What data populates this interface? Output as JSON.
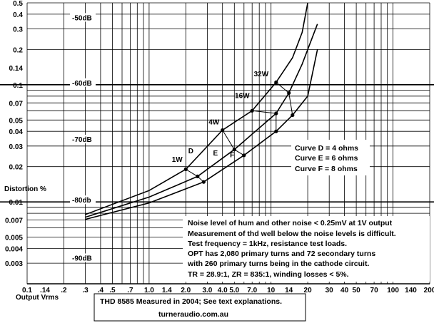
{
  "chart_data": {
    "type": "line",
    "xscale": "log",
    "yscale": "log",
    "xlim": [
      0.1,
      200
    ],
    "ylim": [
      0.002,
      0.5
    ],
    "xlabel": "Output Vrms",
    "ylabel": "Distortion %",
    "x_ticks": [
      {
        "v": 0.1,
        "label": "0.1"
      },
      {
        "v": 0.14,
        "label": ".14"
      },
      {
        "v": 0.2,
        "label": ".2"
      },
      {
        "v": 0.3,
        "label": ".3"
      },
      {
        "v": 0.4,
        "label": ".4"
      },
      {
        "v": 0.5,
        "label": ".5"
      },
      {
        "v": 0.7,
        "label": ".7"
      },
      {
        "v": 1.0,
        "label": "1.0"
      },
      {
        "v": 1.4,
        "label": "1.4"
      },
      {
        "v": 2.0,
        "label": "2.0"
      },
      {
        "v": 3.0,
        "label": "3.0"
      },
      {
        "v": 4.0,
        "label": "4.0"
      },
      {
        "v": 5.0,
        "label": "5.0"
      },
      {
        "v": 7.0,
        "label": "7.0"
      },
      {
        "v": 10,
        "label": "10"
      },
      {
        "v": 14,
        "label": "14"
      },
      {
        "v": 20,
        "label": "20"
      },
      {
        "v": 30,
        "label": "30"
      },
      {
        "v": 40,
        "label": "40"
      },
      {
        "v": 50,
        "label": "50"
      },
      {
        "v": 70,
        "label": "70"
      },
      {
        "v": 100,
        "label": "100"
      },
      {
        "v": 140,
        "label": "140"
      },
      {
        "v": 200,
        "label": "200"
      }
    ],
    "y_ticks": [
      {
        "v": 0.5,
        "label": "0.5"
      },
      {
        "v": 0.4,
        "label": "0.4"
      },
      {
        "v": 0.3,
        "label": "0.3"
      },
      {
        "v": 0.2,
        "label": "0.2"
      },
      {
        "v": 0.14,
        "label": "0.14"
      },
      {
        "v": 0.1,
        "label": "0.1"
      },
      {
        "v": 0.07,
        "label": "0.07"
      },
      {
        "v": 0.05,
        "label": "0.05"
      },
      {
        "v": 0.04,
        "label": "0.04"
      },
      {
        "v": 0.03,
        "label": "0.03"
      },
      {
        "v": 0.02,
        "label": "0.02"
      },
      {
        "v": 0.01,
        "label": "0.01"
      },
      {
        "v": 0.007,
        "label": "0.007"
      },
      {
        "v": 0.005,
        "label": "0.005"
      },
      {
        "v": 0.004,
        "label": "0.004"
      },
      {
        "v": 0.003,
        "label": "0.003"
      }
    ],
    "grid_x_minor": [
      0.1,
      0.2,
      0.3,
      0.4,
      0.5,
      0.6,
      0.7,
      0.8,
      0.9,
      1,
      2,
      3,
      4,
      5,
      6,
      7,
      8,
      9,
      10,
      20,
      30,
      40,
      50,
      60,
      70,
      80,
      90,
      100,
      200
    ],
    "grid_y_minor": [
      0.003,
      0.004,
      0.005,
      0.006,
      0.007,
      0.008,
      0.009,
      0.01,
      0.02,
      0.03,
      0.04,
      0.05,
      0.06,
      0.07,
      0.08,
      0.09,
      0.1,
      0.2,
      0.3,
      0.4,
      0.5
    ],
    "grid_y_major": [
      0.01,
      0.1
    ],
    "db_labels": [
      {
        "text": "-50dB",
        "y": 0.36
      },
      {
        "text": "-60dB",
        "y": 0.1
      },
      {
        "text": "-70dB",
        "y": 0.033
      },
      {
        "text": "-80db",
        "y": 0.01
      },
      {
        "text": "-90dB",
        "y": 0.0032
      }
    ],
    "series": [
      {
        "name": "D",
        "points": [
          [
            0.3,
            0.0078
          ],
          [
            1.0,
            0.0125
          ],
          [
            2.0,
            0.019
          ],
          [
            4.0,
            0.041
          ],
          [
            7.0,
            0.06
          ],
          [
            11.0,
            0.105
          ],
          [
            15.0,
            0.17
          ],
          [
            18.0,
            0.28
          ],
          [
            20.0,
            0.5
          ]
        ]
      },
      {
        "name": "E",
        "points": [
          [
            0.3,
            0.0074
          ],
          [
            1.0,
            0.011
          ],
          [
            2.5,
            0.0165
          ],
          [
            5.0,
            0.028
          ],
          [
            11.0,
            0.057
          ],
          [
            14.0,
            0.085
          ],
          [
            18.0,
            0.15
          ],
          [
            24.0,
            0.33
          ]
        ]
      },
      {
        "name": "F",
        "points": [
          [
            0.3,
            0.0071
          ],
          [
            1.0,
            0.0098
          ],
          [
            2.8,
            0.0148
          ],
          [
            6.0,
            0.025
          ],
          [
            11.0,
            0.04
          ],
          [
            15.0,
            0.055
          ],
          [
            20.0,
            0.08
          ],
          [
            24.0,
            0.2
          ]
        ]
      }
    ],
    "power_lines": [
      {
        "label": "1W",
        "points": [
          [
            2.0,
            0.019
          ],
          [
            2.5,
            0.0165
          ],
          [
            2.8,
            0.0148
          ]
        ]
      },
      {
        "label": "4W",
        "points": [
          [
            4.0,
            0.041
          ],
          [
            5.0,
            0.028
          ],
          [
            6.0,
            0.025
          ]
        ]
      },
      {
        "label": "16W",
        "points": [
          [
            7.0,
            0.06
          ],
          [
            11.0,
            0.057
          ],
          [
            11.0,
            0.04
          ]
        ]
      },
      {
        "label": "32W",
        "points": [
          [
            11.0,
            0.105
          ],
          [
            14.0,
            0.085
          ],
          [
            15.0,
            0.055
          ]
        ]
      }
    ],
    "power_label_positions": [
      {
        "label": "1W",
        "x": 1.7,
        "y": 0.022
      },
      {
        "label": "4W",
        "x": 3.4,
        "y": 0.046
      },
      {
        "label": "16W",
        "x": 5.8,
        "y": 0.077
      },
      {
        "label": "32W",
        "x": 8.3,
        "y": 0.118
      }
    ],
    "curve_label_positions": [
      {
        "label": "D",
        "x": 2.2,
        "y": 0.026
      },
      {
        "label": "E",
        "x": 3.5,
        "y": 0.025
      },
      {
        "label": "F",
        "x": 4.8,
        "y": 0.024
      }
    ]
  },
  "legend": [
    "Curve D = 4 ohms",
    "Curve E = 6 ohms",
    "Curve F = 8 ohms"
  ],
  "notes": [
    "Noise level of hum and other noise < 0.25mV at 1V output",
    "Measurement of thd well below the noise levels is difficult.",
    "Test frequency = 1kHz, resistance test loads.",
    "OPT has 2,080 primary turns and 72 secondary turns",
    "with 260 primary turns being in the cathode circuit.",
    "TR = 28.9:1, ZR = 835:1, winding losses < 5%."
  ],
  "footer": {
    "caption": "THD  8585   Measured in 2004;  See text explanations.",
    "site": "turneraudio.com.au"
  }
}
